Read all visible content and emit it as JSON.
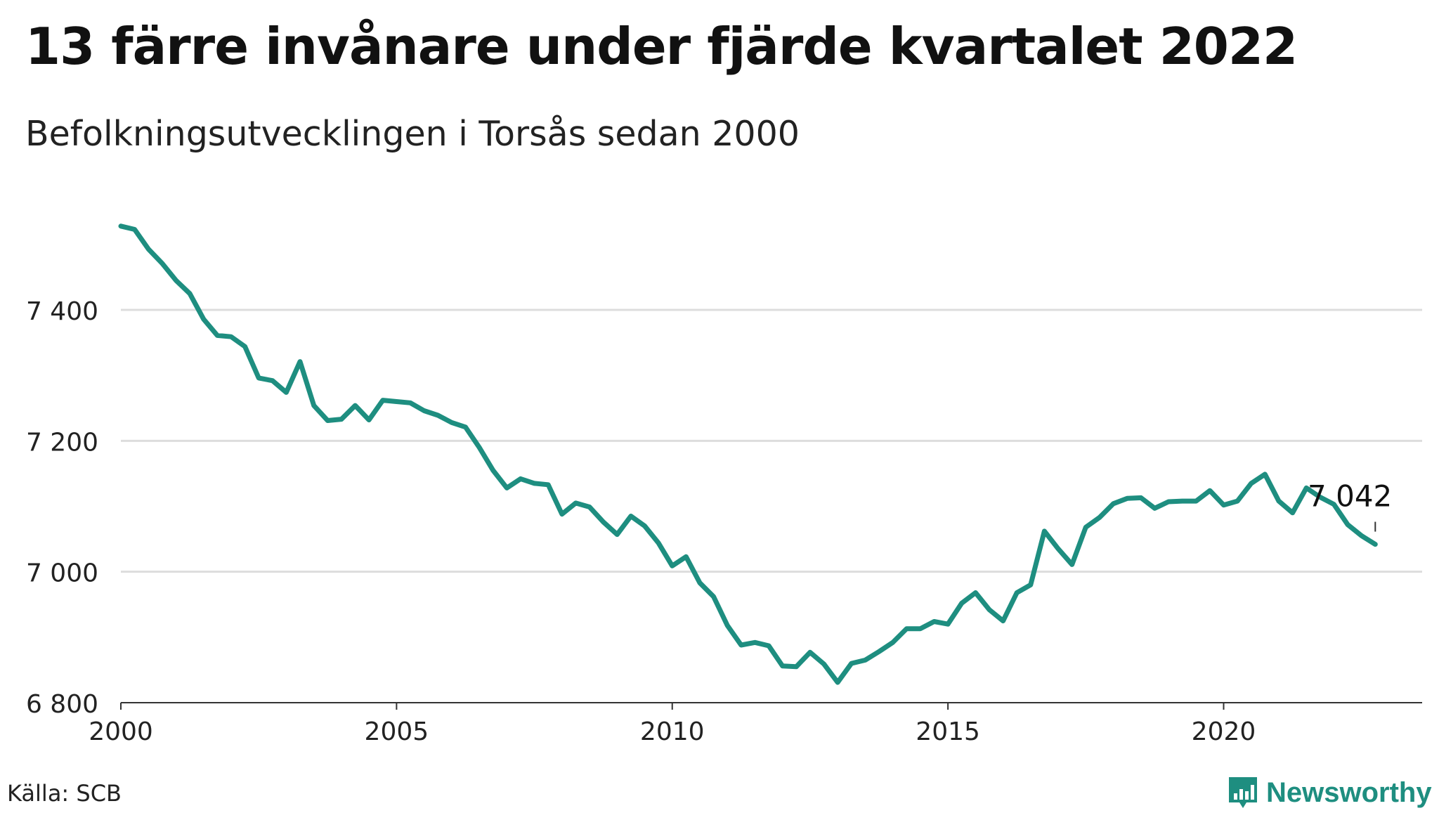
{
  "title": "13 färre invånare under fjärde kvartalet 2022",
  "subtitle": "Befolkningsutvecklingen i Torsås sedan 2000",
  "source": "Källa: SCB",
  "brand": "Newsworthy",
  "colors": {
    "line": "#1e8e80",
    "grid": "#dddddd",
    "brand": "#1e8e80"
  },
  "chart_data": {
    "type": "line",
    "ylim": [
      6800,
      7560
    ],
    "xlim": [
      2000,
      2023.6
    ],
    "yticks": [
      6800,
      7000,
      7200,
      7400
    ],
    "ytick_labels": [
      "6 800",
      "7 000",
      "7 200",
      "7 400"
    ],
    "xticks": [
      2000,
      2005,
      2010,
      2015,
      2020
    ],
    "xtick_labels": [
      "2000",
      "2005",
      "2010",
      "2015",
      "2020"
    ],
    "grid": true,
    "end_label": "7 042",
    "series": [
      {
        "values": [
          {
            "x": "2000 Q1",
            "y": 7528
          },
          {
            "x": "2000 Q2",
            "y": 7523
          },
          {
            "x": "2000 Q3",
            "y": 7493
          },
          {
            "x": "2000 Q4",
            "y": 7471
          },
          {
            "x": "2001 Q1",
            "y": 7445
          },
          {
            "x": "2001 Q2",
            "y": 7425
          },
          {
            "x": "2001 Q3",
            "y": 7386
          },
          {
            "x": "2001 Q4",
            "y": 7361
          },
          {
            "x": "2002 Q1",
            "y": 7359
          },
          {
            "x": "2002 Q2",
            "y": 7344
          },
          {
            "x": "2002 Q3",
            "y": 7296
          },
          {
            "x": "2002 Q4",
            "y": 7292
          },
          {
            "x": "2003 Q1",
            "y": 7274
          },
          {
            "x": "2003 Q2",
            "y": 7321
          },
          {
            "x": "2003 Q3",
            "y": 7254
          },
          {
            "x": "2003 Q4",
            "y": 7231
          },
          {
            "x": "2004 Q1",
            "y": 7233
          },
          {
            "x": "2004 Q2",
            "y": 7254
          },
          {
            "x": "2004 Q3",
            "y": 7232
          },
          {
            "x": "2004 Q4",
            "y": 7262
          },
          {
            "x": "2005 Q1",
            "y": 7260
          },
          {
            "x": "2005 Q2",
            "y": 7258
          },
          {
            "x": "2005 Q3",
            "y": 7246
          },
          {
            "x": "2005 Q4",
            "y": 7239
          },
          {
            "x": "2006 Q1",
            "y": 7228
          },
          {
            "x": "2006 Q2",
            "y": 7221
          },
          {
            "x": "2006 Q3",
            "y": 7190
          },
          {
            "x": "2006 Q4",
            "y": 7155
          },
          {
            "x": "2007 Q1",
            "y": 7128
          },
          {
            "x": "2007 Q2",
            "y": 7142
          },
          {
            "x": "2007 Q3",
            "y": 7135
          },
          {
            "x": "2007 Q4",
            "y": 7133
          },
          {
            "x": "2008 Q1",
            "y": 7088
          },
          {
            "x": "2008 Q2",
            "y": 7105
          },
          {
            "x": "2008 Q3",
            "y": 7099
          },
          {
            "x": "2008 Q4",
            "y": 7076
          },
          {
            "x": "2009 Q1",
            "y": 7057
          },
          {
            "x": "2009 Q2",
            "y": 7085
          },
          {
            "x": "2009 Q3",
            "y": 7070
          },
          {
            "x": "2009 Q4",
            "y": 7044
          },
          {
            "x": "2010 Q1",
            "y": 7009
          },
          {
            "x": "2010 Q2",
            "y": 7023
          },
          {
            "x": "2010 Q3",
            "y": 6983
          },
          {
            "x": "2010 Q4",
            "y": 6962
          },
          {
            "x": "2011 Q1",
            "y": 6918
          },
          {
            "x": "2011 Q2",
            "y": 6888
          },
          {
            "x": "2011 Q3",
            "y": 6892
          },
          {
            "x": "2011 Q4",
            "y": 6887
          },
          {
            "x": "2012 Q1",
            "y": 6856
          },
          {
            "x": "2012 Q2",
            "y": 6855
          },
          {
            "x": "2012 Q3",
            "y": 6877
          },
          {
            "x": "2012 Q4",
            "y": 6859
          },
          {
            "x": "2013 Q1",
            "y": 6831
          },
          {
            "x": "2013 Q2",
            "y": 6860
          },
          {
            "x": "2013 Q3",
            "y": 6865
          },
          {
            "x": "2013 Q4",
            "y": 6878
          },
          {
            "x": "2014 Q1",
            "y": 6892
          },
          {
            "x": "2014 Q2",
            "y": 6913
          },
          {
            "x": "2014 Q3",
            "y": 6913
          },
          {
            "x": "2014 Q4",
            "y": 6924
          },
          {
            "x": "2015 Q1",
            "y": 6920
          },
          {
            "x": "2015 Q2",
            "y": 6952
          },
          {
            "x": "2015 Q3",
            "y": 6968
          },
          {
            "x": "2015 Q4",
            "y": 6942
          },
          {
            "x": "2016 Q1",
            "y": 6925
          },
          {
            "x": "2016 Q2",
            "y": 6968
          },
          {
            "x": "2016 Q3",
            "y": 6980
          },
          {
            "x": "2016 Q4",
            "y": 7062
          },
          {
            "x": "2017 Q1",
            "y": 7035
          },
          {
            "x": "2017 Q2",
            "y": 7011
          },
          {
            "x": "2017 Q3",
            "y": 7068
          },
          {
            "x": "2017 Q4",
            "y": 7083
          },
          {
            "x": "2018 Q1",
            "y": 7104
          },
          {
            "x": "2018 Q2",
            "y": 7112
          },
          {
            "x": "2018 Q3",
            "y": 7113
          },
          {
            "x": "2018 Q4",
            "y": 7097
          },
          {
            "x": "2019 Q1",
            "y": 7107
          },
          {
            "x": "2019 Q2",
            "y": 7108
          },
          {
            "x": "2019 Q3",
            "y": 7108
          },
          {
            "x": "2019 Q4",
            "y": 7124
          },
          {
            "x": "2020 Q1",
            "y": 7102
          },
          {
            "x": "2020 Q2",
            "y": 7108
          },
          {
            "x": "2020 Q3",
            "y": 7135
          },
          {
            "x": "2020 Q4",
            "y": 7149
          },
          {
            "x": "2021 Q1",
            "y": 7108
          },
          {
            "x": "2021 Q2",
            "y": 7090
          },
          {
            "x": "2021 Q3",
            "y": 7128
          },
          {
            "x": "2021 Q4",
            "y": 7114
          },
          {
            "x": "2022 Q1",
            "y": 7103
          },
          {
            "x": "2022 Q2",
            "y": 7072
          },
          {
            "x": "2022 Q3",
            "y": 7055
          },
          {
            "x": "2022 Q4",
            "y": 7042
          }
        ]
      }
    ]
  }
}
